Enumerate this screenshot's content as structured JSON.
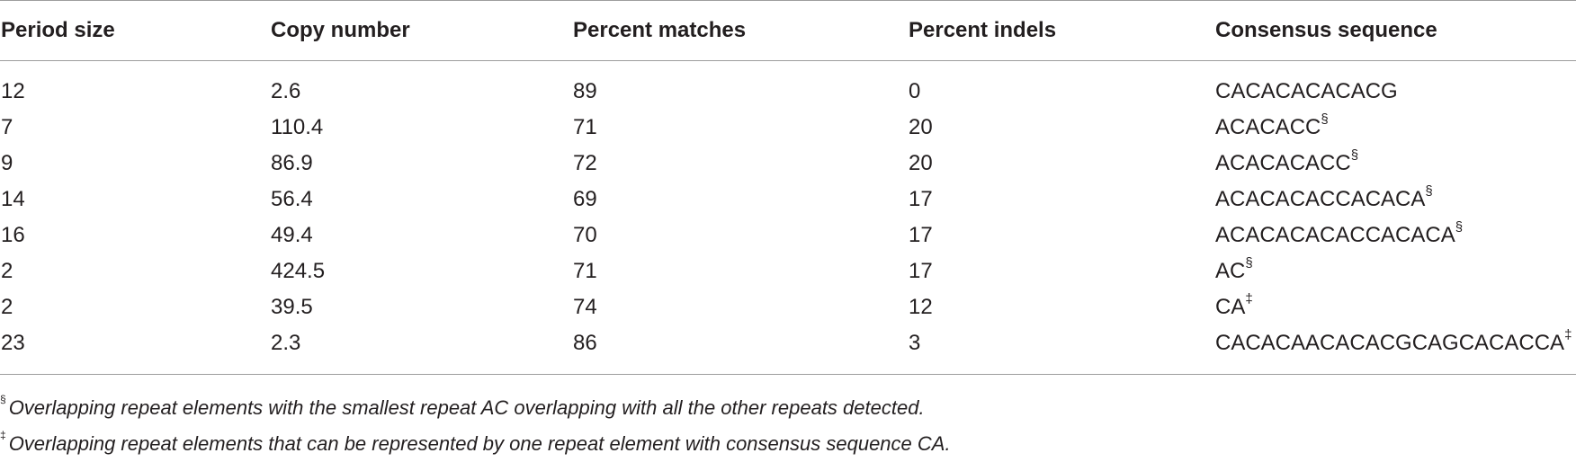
{
  "table": {
    "headers": [
      "Period size",
      "Copy number",
      "Percent matches",
      "Percent indels",
      "Consensus sequence"
    ],
    "rows": [
      {
        "period_size": "12",
        "copy_number": "2.6",
        "percent_matches": "89",
        "percent_indels": "0",
        "consensus": "CACACACACACG",
        "mark": ""
      },
      {
        "period_size": "7",
        "copy_number": "110.4",
        "percent_matches": "71",
        "percent_indels": "20",
        "consensus": "ACACACC",
        "mark": "§"
      },
      {
        "period_size": "9",
        "copy_number": "86.9",
        "percent_matches": "72",
        "percent_indels": "20",
        "consensus": "ACACACACC",
        "mark": "§"
      },
      {
        "period_size": "14",
        "copy_number": "56.4",
        "percent_matches": "69",
        "percent_indels": "17",
        "consensus": "ACACACACCACACA",
        "mark": "§"
      },
      {
        "period_size": "16",
        "copy_number": "49.4",
        "percent_matches": "70",
        "percent_indels": "17",
        "consensus": "ACACACACACCACACA",
        "mark": "§"
      },
      {
        "period_size": "2",
        "copy_number": "424.5",
        "percent_matches": "71",
        "percent_indels": "17",
        "consensus": "AC",
        "mark": "§"
      },
      {
        "period_size": "2",
        "copy_number": "39.5",
        "percent_matches": "74",
        "percent_indels": "12",
        "consensus": "CA",
        "mark": "‡"
      },
      {
        "period_size": "23",
        "copy_number": "2.3",
        "percent_matches": "86",
        "percent_indels": "3",
        "consensus": "CACACAACACACGCAGCACACCA",
        "mark": "‡"
      }
    ]
  },
  "footnotes": [
    {
      "mark": "§",
      "text": "Overlapping repeat elements with the smallest repeat AC overlapping with all the other repeats detected."
    },
    {
      "mark": "‡",
      "text": "Overlapping repeat elements that can be represented by one repeat element with consensus sequence CA."
    }
  ]
}
